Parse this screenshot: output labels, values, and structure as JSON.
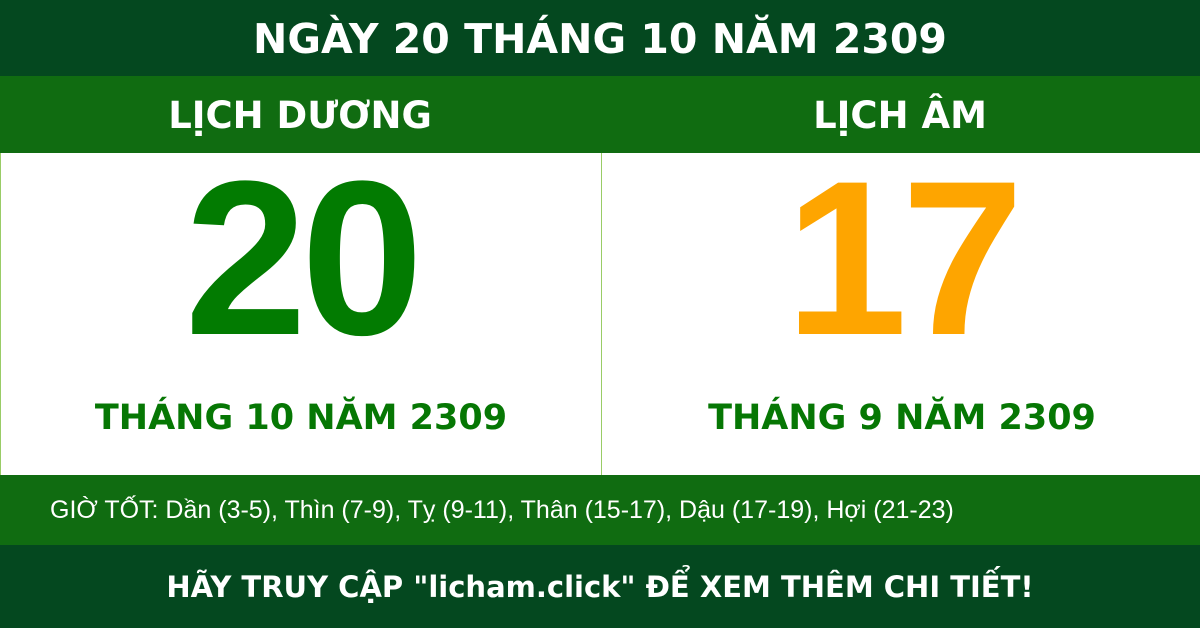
{
  "title": "NGÀY 20 THÁNG 10 NĂM 2309",
  "solar": {
    "label": "LỊCH DƯƠNG",
    "day": "20",
    "month_year": "THÁNG 10 NĂM 2309"
  },
  "lunar": {
    "label": "LỊCH ÂM",
    "day": "17",
    "month_year": "THÁNG 9 NĂM 2309"
  },
  "good_hours": "GIỜ TỐT: Dần (3-5), Thìn (7-9), Tỵ (9-11), Thân (15-17), Dậu (17-19), Hợi (21-23)",
  "footer": "HÃY TRUY CẬP \"licham.click\" ĐỂ XEM THÊM CHI TIẾT!",
  "colors": {
    "dark_green": "#04481f",
    "green": "#106c11",
    "solar_day": "#027b01",
    "lunar_day": "#fea500"
  }
}
